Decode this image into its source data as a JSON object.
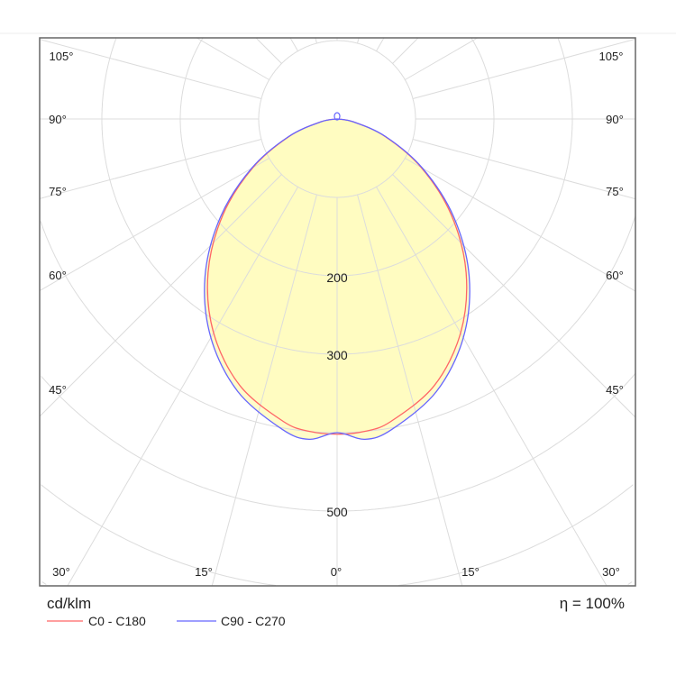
{
  "chart_data": {
    "type": "polar",
    "title": "",
    "unit_label": "cd/klm",
    "efficiency_label": "η = 100%",
    "radial_ticks": [
      100,
      200,
      300,
      400,
      500,
      600,
      700
    ],
    "radial_tick_labels": [
      "200",
      "300",
      "500"
    ],
    "angle_labels": {
      "left": [
        "105°",
        "90°",
        "75°",
        "60°",
        "45°"
      ],
      "right": [
        "105°",
        "90°",
        "75°",
        "60°",
        "45°"
      ],
      "bottom": [
        "30°",
        "15°",
        "0°",
        "15°",
        "30°"
      ]
    },
    "angles_deg": [
      0,
      5,
      10,
      20,
      30,
      40,
      50,
      60,
      70,
      80,
      90
    ],
    "series": [
      {
        "name": "C0 - C180",
        "color": "#ff6666",
        "values": [
          402,
          400,
          392,
          362,
          315,
          256,
          190,
          124,
          65,
          21,
          0
        ]
      },
      {
        "name": "C90 - C270",
        "color": "#6666ff",
        "values": [
          400,
          410,
          402,
          370,
          322,
          262,
          194,
          126,
          66,
          21,
          0
        ]
      }
    ],
    "fill_color": "#fffcc0",
    "grid": true
  }
}
